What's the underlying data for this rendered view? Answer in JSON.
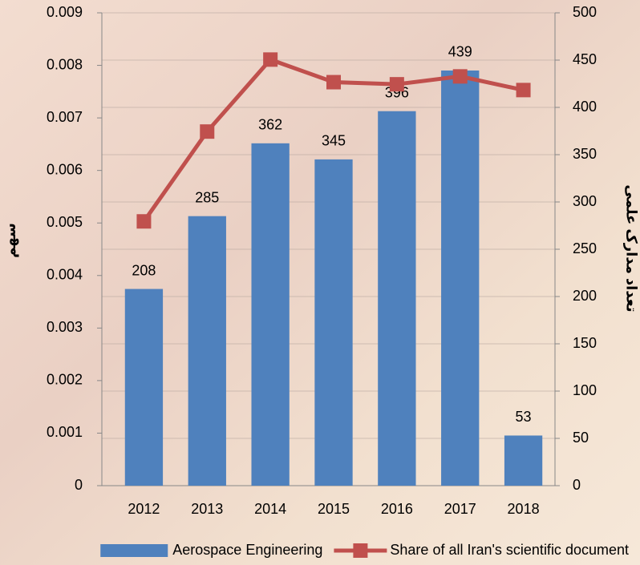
{
  "chart_data": {
    "type": "bar-line",
    "categories": [
      "2012",
      "2013",
      "2014",
      "2015",
      "2016",
      "2017",
      "2018"
    ],
    "series": [
      {
        "name": "Aerospace Engineering",
        "type": "bar",
        "axis": "y2",
        "color": "#4f81bd",
        "values": [
          208,
          285,
          362,
          345,
          396,
          439,
          53
        ]
      },
      {
        "name": "Share of all Iran's scientific document",
        "type": "line",
        "axis": "y",
        "color": "#c0504d",
        "values": [
          0.00503,
          0.00674,
          0.00811,
          0.00768,
          0.00764,
          0.00779,
          0.00753
        ]
      }
    ],
    "ylabel": "سهم",
    "y2label": "تعداد مدارک علمی",
    "ylim": [
      0,
      0.009
    ],
    "yticks": [
      0,
      0.001,
      0.002,
      0.003,
      0.004,
      0.005,
      0.006,
      0.007,
      0.008,
      0.009
    ],
    "y2lim": [
      0,
      500
    ],
    "y2ticks": [
      0,
      50,
      100,
      150,
      200,
      250,
      300,
      350,
      400,
      450,
      500
    ],
    "grid": true,
    "legend": "bottom"
  }
}
